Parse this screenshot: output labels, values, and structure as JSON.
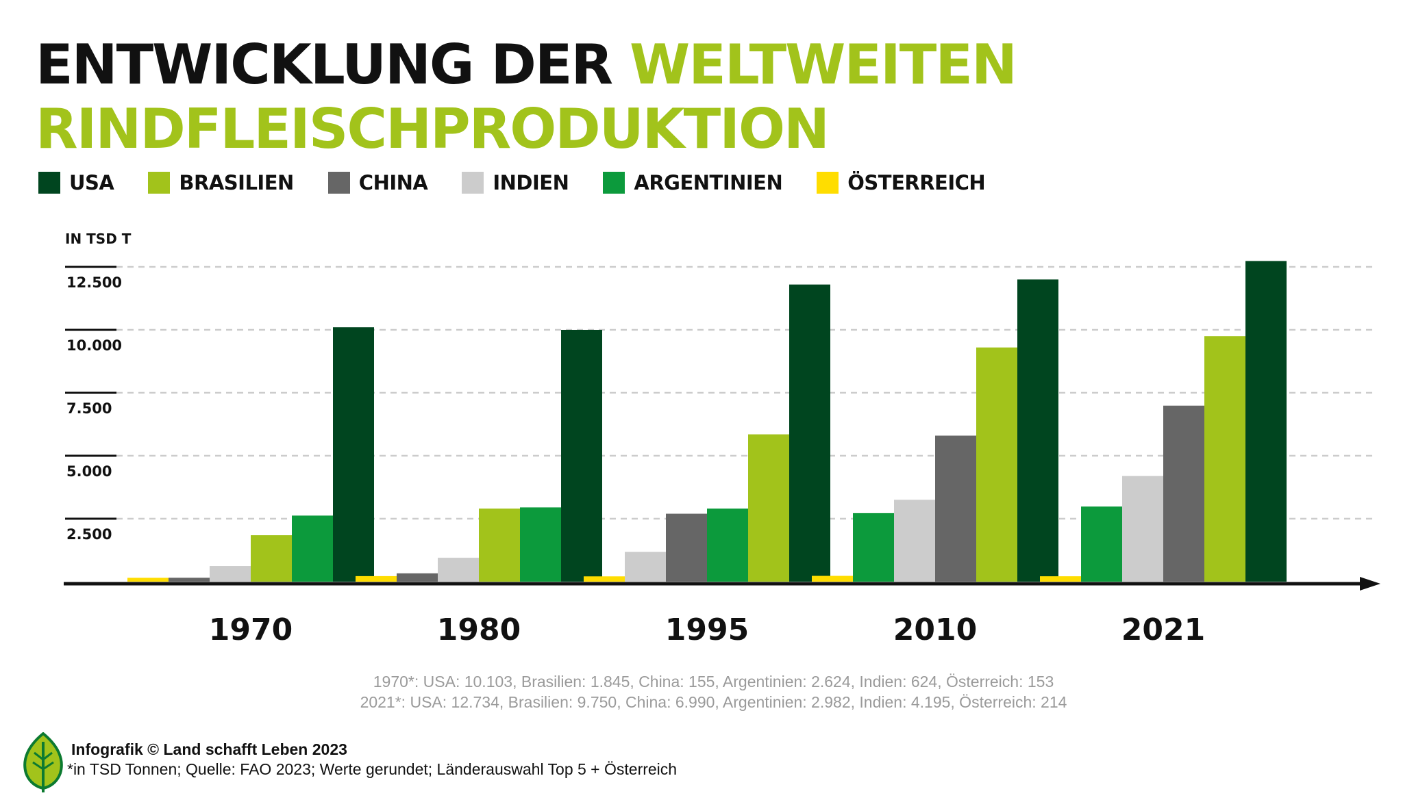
{
  "title": {
    "part1": "ENTWICKLUNG DER ",
    "part2": "WELTWEITEN",
    "line2": "RINDFLEISCHPRODUKTION"
  },
  "colors": {
    "USA": "#00451f",
    "Brasilien": "#a2c31b",
    "China": "#666666",
    "Indien": "#cccccc",
    "Argentinien": "#0c9a3c",
    "Oesterreich": "#ffdd00",
    "title_green": "#a2c31b",
    "axis": "#111111",
    "grid": "#cccccc"
  },
  "legend": [
    {
      "label": "USA",
      "color": "#00451f"
    },
    {
      "label": "BRASILIEN",
      "color": "#a2c31b"
    },
    {
      "label": "CHINA",
      "color": "#666666"
    },
    {
      "label": "INDIEN",
      "color": "#cccccc"
    },
    {
      "label": "ARGENTINIEN",
      "color": "#0c9a3c"
    },
    {
      "label": "ÖSTERREICH",
      "color": "#ffdd00"
    }
  ],
  "chart_data": {
    "type": "bar",
    "ylabel": "IN TSD T",
    "ylim": [
      0,
      13000
    ],
    "yticks": [
      2500,
      5000,
      7500,
      10000,
      12500
    ],
    "ytick_labels": [
      "2.500",
      "5.000",
      "7.500",
      "10.000",
      "12.500"
    ],
    "grid": true,
    "categories": [
      "1970",
      "1980",
      "1995",
      "2010",
      "2021"
    ],
    "series": [
      {
        "name": "ÖSTERREICH",
        "color": "#ffdd00",
        "values": [
          153,
          220,
          210,
          230,
          214
        ]
      },
      {
        "name": "CHINA",
        "color": "#666666",
        "values": [
          155,
          330,
          2700,
          5800,
          6990
        ]
      },
      {
        "name": "INDIEN",
        "color": "#cccccc",
        "values": [
          624,
          950,
          1180,
          3250,
          4195
        ]
      },
      {
        "name": "BRASILIEN",
        "color": "#a2c31b",
        "values": [
          1845,
          2900,
          5850,
          9300,
          9750
        ]
      },
      {
        "name": "ARGENTINIEN",
        "color": "#0c9a3c",
        "values": [
          2624,
          2950,
          2900,
          2720,
          2982
        ]
      },
      {
        "name": "USA",
        "color": "#00451f",
        "values": [
          10103,
          10000,
          11800,
          12000,
          12734
        ]
      }
    ],
    "group_orders": [
      [
        "ÖSTERREICH",
        "CHINA",
        "INDIEN",
        "BRASILIEN",
        "ARGENTINIEN",
        "USA"
      ],
      [
        "ÖSTERREICH",
        "CHINA",
        "INDIEN",
        "BRASILIEN",
        "ARGENTINIEN",
        "USA"
      ],
      [
        "ÖSTERREICH",
        "INDIEN",
        "CHINA",
        "ARGENTINIEN",
        "BRASILIEN",
        "USA"
      ],
      [
        "ÖSTERREICH",
        "ARGENTINIEN",
        "INDIEN",
        "CHINA",
        "BRASILIEN",
        "USA"
      ],
      [
        "ÖSTERREICH",
        "ARGENTINIEN",
        "INDIEN",
        "CHINA",
        "BRASILIEN",
        "USA"
      ]
    ]
  },
  "footnotes": {
    "line1": "1970*: USA: 10.103, Brasilien: 1.845, China: 155, Argentinien: 2.624, Indien: 624, Österreich: 153",
    "line2": "2021*: USA: 12.734, Brasilien: 9.750, China: 6.990, Argentinien: 2.982, Indien: 4.195, Österreich: 214"
  },
  "credit": "Infografik © Land schafft Leben 2023",
  "source": "*in TSD Tonnen; Quelle: FAO 2023; Werte gerundet; Länderauswahl Top 5 + Österreich",
  "logo_icon": "leaf-logo-icon"
}
